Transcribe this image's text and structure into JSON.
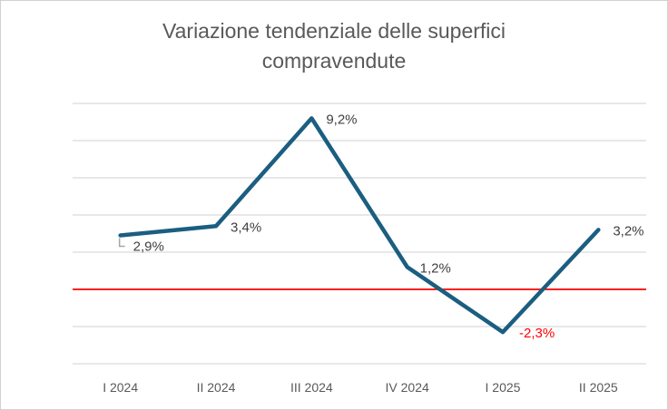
{
  "chart_data": {
    "type": "line",
    "title": "Variazione tendenziale delle superfici compravendute",
    "title_lines": [
      "Variazione tendenziale delle superfici",
      "compravendute"
    ],
    "categories": [
      "I 2024",
      "II 2024",
      "III 2024",
      "IV 2024",
      "I 2025",
      "II 2025"
    ],
    "series": [
      {
        "name": "Variazione tendenziale",
        "values": [
          2.9,
          3.4,
          9.2,
          1.2,
          -2.3,
          3.2
        ]
      }
    ],
    "data_labels": [
      "2,9%",
      "3,4%",
      "9,2%",
      "1,2%",
      "-2,3%",
      "3,2%"
    ],
    "ylim": [
      -4,
      10
    ],
    "ytick_step": 2,
    "grid": true,
    "reference_line": 0,
    "xlabel": "",
    "ylabel": "",
    "colors": {
      "line": "#1b5e80",
      "reference": "#ff0000",
      "negative_label": "#ff0000",
      "label": "#404040",
      "grid": "#d9d9d9"
    }
  }
}
